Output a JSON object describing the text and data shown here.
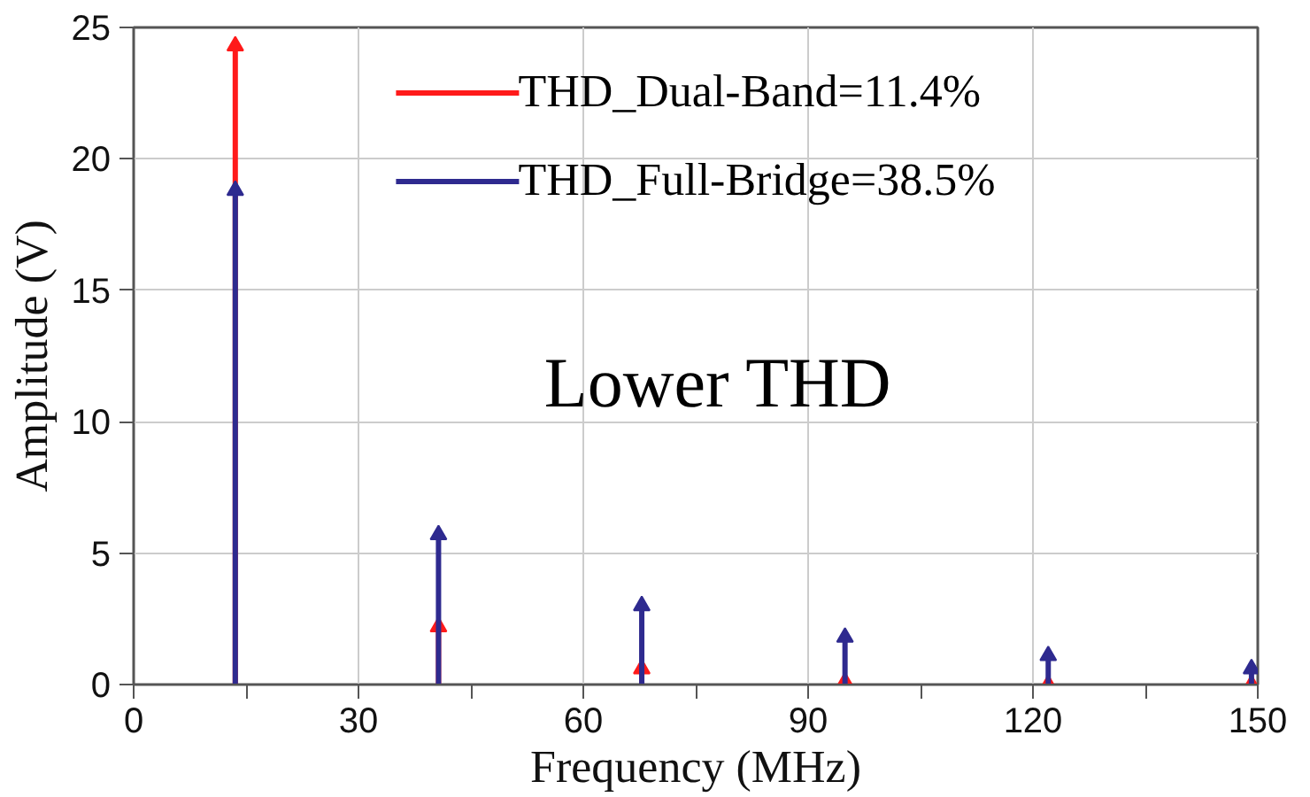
{
  "chart_data": {
    "type": "lollipop",
    "xlabel": "Frequency (MHz)",
    "ylabel": "Amplitude (V)",
    "x": [
      13.56,
      40.68,
      67.8,
      94.92,
      122.04,
      149.16
    ],
    "series": [
      {
        "name": "THD_Dual-Band=11.4%",
        "color": "#ff1a1a",
        "values": [
          24.3,
          2.2,
          0.6,
          0.1,
          0,
          0
        ]
      },
      {
        "name": "THD_Full-Bridge=38.5%",
        "color": "#2e2a8f",
        "values": [
          18.8,
          5.7,
          3.0,
          1.8,
          1.1,
          0.6
        ]
      }
    ],
    "xlim": [
      0,
      150
    ],
    "ylim": [
      0,
      25
    ],
    "xticks": [
      0,
      {
        "value": 15,
        "label": null
      },
      30,
      {
        "value": 45,
        "label": null
      },
      60,
      {
        "value": 75,
        "label": null
      },
      90,
      {
        "value": 105,
        "label": null
      },
      120,
      {
        "value": 135,
        "label": null
      },
      150
    ],
    "yticks": [
      0,
      5,
      10,
      15,
      20,
      25
    ],
    "grid": true,
    "legend": "top",
    "marker": "triangle",
    "annotations": [
      "Lower THD"
    ]
  }
}
